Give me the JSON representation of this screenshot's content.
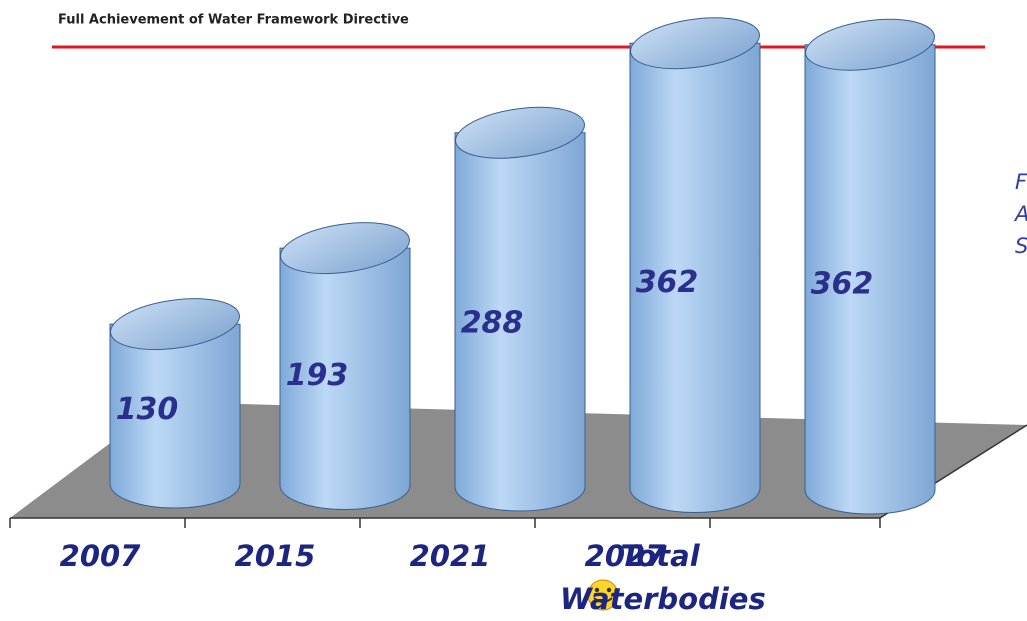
{
  "chart_data": {
    "type": "cylinder_bar",
    "title": "Full Achievement of Water Framework Directive",
    "categories": [
      "2007",
      "2015",
      "2021",
      "2027",
      "Total Waterbodies"
    ],
    "values": [
      130,
      193,
      288,
      362,
      362
    ],
    "color": "#9cc3ec",
    "side_text": [
      "F",
      "A",
      "S"
    ]
  }
}
